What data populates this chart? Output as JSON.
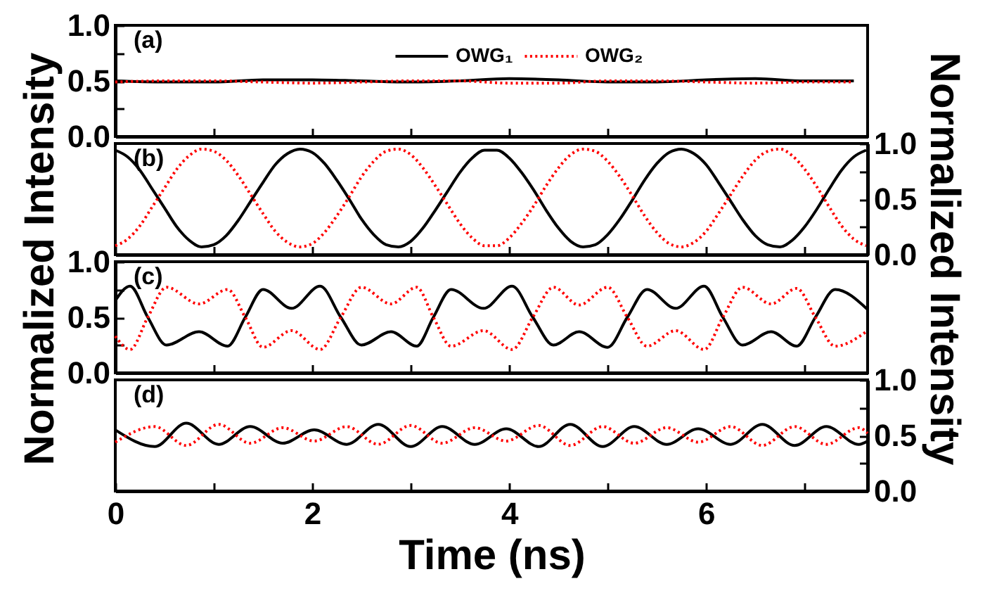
{
  "chart_data": [
    {
      "type": "line",
      "annotations": [
        "(a)"
      ],
      "ylabel": "Normalized Intensity",
      "tick_labels": "y",
      "legend": "top",
      "xlim": [
        0,
        7.64
      ],
      "xticks": [
        0,
        {
          "value": 1,
          "label": null
        },
        2,
        {
          "value": 3,
          "label": null
        },
        4,
        {
          "value": 5,
          "label": null
        },
        6,
        {
          "value": 7,
          "label": null
        }
      ],
      "ylim": [
        0,
        1
      ],
      "yticks": [
        {
          "value": 0,
          "label": "0.0"
        },
        {
          "value": 0.25,
          "label": null
        },
        {
          "value": 0.5,
          "label": "0.5"
        },
        {
          "value": 0.75,
          "label": null
        },
        {
          "value": 1,
          "label": "1.0"
        }
      ],
      "x": [
        0,
        0.5,
        1,
        1.5,
        2,
        2.5,
        3,
        3.5,
        4,
        4.5,
        5,
        5.5,
        6,
        6.5,
        7,
        7.5
      ],
      "series": [
        {
          "name": "OWG₁",
          "color": "#000000",
          "line_style": "solid",
          "values": [
            0.5,
            0.49,
            0.49,
            0.51,
            0.51,
            0.5,
            0.49,
            0.5,
            0.52,
            0.51,
            0.49,
            0.49,
            0.51,
            0.52,
            0.5,
            0.5
          ]
        },
        {
          "name": "OWG₂",
          "color": "#ff0000",
          "line_style": "dotted",
          "values": [
            0.49,
            0.5,
            0.5,
            0.49,
            0.48,
            0.49,
            0.5,
            0.5,
            0.48,
            0.48,
            0.5,
            0.5,
            0.49,
            0.48,
            0.49,
            0.49
          ]
        }
      ]
    },
    {
      "type": "line",
      "annotations": [
        "(b)"
      ],
      "y2label": "Normalized Intensity",
      "tick_labels": "y",
      "xlim": [
        0,
        7.64
      ],
      "xticks": [
        0,
        {
          "value": 1,
          "label": null
        },
        2,
        {
          "value": 3,
          "label": null
        },
        4,
        {
          "value": 5,
          "label": null
        },
        6,
        {
          "value": 7,
          "label": null
        }
      ],
      "y2lim": [
        0,
        1
      ],
      "y2ticks": [
        {
          "value": 0,
          "label": "0.0"
        },
        {
          "value": 0.25,
          "label": null
        },
        {
          "value": 0.5,
          "label": "0.5"
        },
        {
          "value": 0.75,
          "label": null
        },
        {
          "value": 1,
          "label": "1.0"
        }
      ],
      "x": [
        0,
        0.125,
        0.25,
        0.375,
        0.5,
        0.625,
        0.75,
        0.875,
        1,
        1.125,
        1.25,
        1.375,
        1.5,
        1.625,
        1.75,
        1.875,
        2,
        2.125,
        2.25,
        2.375,
        2.5,
        2.625,
        2.75,
        2.875,
        3,
        3.125,
        3.25,
        3.375,
        3.5,
        3.625,
        3.75,
        3.875,
        4,
        4.125,
        4.25,
        4.375,
        4.5,
        4.625,
        4.75,
        4.875,
        5,
        5.125,
        5.25,
        5.375,
        5.5,
        5.625,
        5.75,
        5.875,
        6,
        6.125,
        6.25,
        6.375,
        6.5,
        6.625,
        6.75,
        6.875,
        7,
        7.125,
        7.25,
        7.375,
        7.5,
        7.625
      ],
      "series": [
        {
          "color": "#000000",
          "line_style": "solid",
          "axis": "y2",
          "values": [
            0.94,
            0.88,
            0.76,
            0.59,
            0.42,
            0.25,
            0.13,
            0.07,
            0.09,
            0.17,
            0.31,
            0.48,
            0.65,
            0.81,
            0.91,
            0.95,
            0.92,
            0.82,
            0.67,
            0.5,
            0.32,
            0.18,
            0.09,
            0.07,
            0.12,
            0.24,
            0.4,
            0.57,
            0.74,
            0.87,
            0.94,
            0.94,
            0.87,
            0.74,
            0.58,
            0.4,
            0.24,
            0.12,
            0.07,
            0.09,
            0.18,
            0.32,
            0.49,
            0.67,
            0.82,
            0.92,
            0.95,
            0.91,
            0.81,
            0.65,
            0.48,
            0.31,
            0.17,
            0.09,
            0.07,
            0.13,
            0.25,
            0.41,
            0.59,
            0.76,
            0.88,
            0.94
          ]
        },
        {
          "color": "#ff0000",
          "line_style": "dotted",
          "axis": "y2",
          "values": [
            0.08,
            0.14,
            0.26,
            0.43,
            0.6,
            0.77,
            0.89,
            0.95,
            0.93,
            0.85,
            0.71,
            0.54,
            0.37,
            0.21,
            0.11,
            0.07,
            0.1,
            0.2,
            0.35,
            0.52,
            0.7,
            0.84,
            0.93,
            0.95,
            0.9,
            0.78,
            0.62,
            0.45,
            0.28,
            0.15,
            0.08,
            0.08,
            0.15,
            0.28,
            0.44,
            0.62,
            0.78,
            0.9,
            0.95,
            0.93,
            0.84,
            0.7,
            0.53,
            0.35,
            0.2,
            0.1,
            0.07,
            0.11,
            0.21,
            0.37,
            0.54,
            0.71,
            0.85,
            0.93,
            0.95,
            0.89,
            0.77,
            0.61,
            0.43,
            0.26,
            0.14,
            0.08
          ]
        }
      ]
    },
    {
      "type": "line",
      "annotations": [
        "(c)"
      ],
      "tick_labels": "y",
      "xlim": [
        0,
        7.64
      ],
      "xticks": [
        0,
        {
          "value": 1,
          "label": null
        },
        2,
        {
          "value": 3,
          "label": null
        },
        4,
        {
          "value": 5,
          "label": null
        },
        6,
        {
          "value": 7,
          "label": null
        }
      ],
      "ylim": [
        0,
        1
      ],
      "yticks": [
        {
          "value": 0,
          "label": "0.0"
        },
        {
          "value": 0.25,
          "label": null
        },
        {
          "value": 0.5,
          "label": "0.5"
        },
        {
          "value": 0.75,
          "label": null
        },
        {
          "value": 1,
          "label": "1.0"
        }
      ],
      "x": [
        0,
        0.15,
        0.33,
        0.52,
        0.85,
        1.14,
        1.32,
        1.5,
        1.79,
        2.08,
        2.29,
        2.5,
        2.8,
        3.06,
        3.23,
        3.41,
        3.74,
        4.03,
        4.24,
        4.45,
        4.71,
        5.0,
        5.2,
        5.4,
        5.69,
        5.98,
        6.17,
        6.37,
        6.66,
        6.92,
        7.11,
        7.31,
        7.64
      ],
      "series": [
        {
          "color": "#000000",
          "line_style": "solid",
          "values": [
            0.65,
            0.78,
            0.5,
            0.25,
            0.37,
            0.24,
            0.5,
            0.75,
            0.58,
            0.78,
            0.5,
            0.25,
            0.37,
            0.24,
            0.5,
            0.75,
            0.58,
            0.78,
            0.5,
            0.25,
            0.37,
            0.23,
            0.5,
            0.75,
            0.58,
            0.78,
            0.5,
            0.25,
            0.37,
            0.24,
            0.5,
            0.75,
            0.57
          ]
        },
        {
          "color": "#ff0000",
          "line_style": "dotted",
          "values": [
            0.33,
            0.21,
            0.5,
            0.77,
            0.62,
            0.75,
            0.5,
            0.23,
            0.38,
            0.21,
            0.5,
            0.77,
            0.62,
            0.77,
            0.5,
            0.24,
            0.38,
            0.21,
            0.5,
            0.77,
            0.61,
            0.77,
            0.5,
            0.24,
            0.38,
            0.21,
            0.5,
            0.77,
            0.62,
            0.76,
            0.5,
            0.24,
            0.38
          ]
        }
      ]
    },
    {
      "type": "line",
      "annotations": [
        "(d)"
      ],
      "xlabel": "Time (ns)",
      "xlim": [
        0,
        7.64
      ],
      "xticks": [
        0,
        {
          "value": 1,
          "label": null
        },
        2,
        {
          "value": 3,
          "label": null
        },
        4,
        {
          "value": 5,
          "label": null
        },
        6,
        {
          "value": 7,
          "label": null
        }
      ],
      "y2lim": [
        0,
        1
      ],
      "y2ticks": [
        {
          "value": 0,
          "label": "0.0"
        },
        {
          "value": 0.25,
          "label": null
        },
        {
          "value": 0.5,
          "label": "0.5"
        },
        {
          "value": 0.75,
          "label": null
        },
        {
          "value": 1,
          "label": "1.0"
        }
      ],
      "x": [
        0,
        0.4,
        0.72,
        1.05,
        1.37,
        1.7,
        2.02,
        2.35,
        2.67,
        3.0,
        3.32,
        3.65,
        3.97,
        4.3,
        4.62,
        4.95,
        5.27,
        5.6,
        5.92,
        6.25,
        6.57,
        6.9,
        7.22,
        7.55,
        7.64
      ],
      "series": [
        {
          "color": "#000000",
          "line_style": "solid",
          "axis": "y2",
          "values": [
            0.55,
            0.4,
            0.61,
            0.42,
            0.58,
            0.43,
            0.55,
            0.42,
            0.6,
            0.4,
            0.58,
            0.42,
            0.56,
            0.4,
            0.6,
            0.4,
            0.58,
            0.42,
            0.56,
            0.42,
            0.6,
            0.41,
            0.58,
            0.42,
            0.45
          ]
        },
        {
          "color": "#ff0000",
          "line_style": "dotted",
          "axis": "y2",
          "values": [
            0.44,
            0.58,
            0.41,
            0.6,
            0.43,
            0.57,
            0.45,
            0.58,
            0.42,
            0.59,
            0.43,
            0.57,
            0.45,
            0.59,
            0.41,
            0.58,
            0.43,
            0.57,
            0.44,
            0.58,
            0.41,
            0.58,
            0.42,
            0.57,
            0.52
          ]
        }
      ]
    }
  ]
}
